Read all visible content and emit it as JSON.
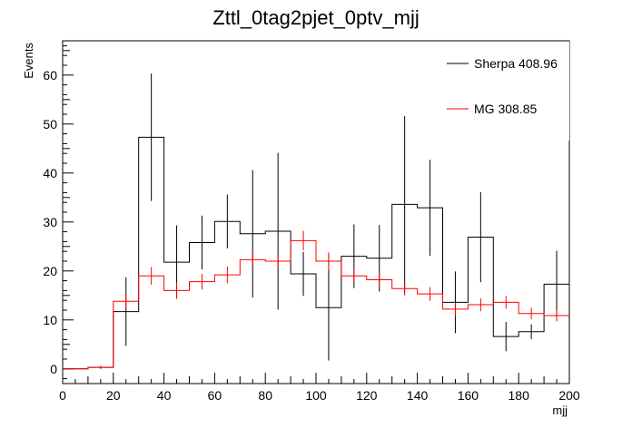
{
  "chart_data": {
    "type": "histogram",
    "title": "Zttl_0tag2pjet_0ptv_mjj",
    "xlabel": "mjj",
    "ylabel": "Events",
    "xlim": [
      0,
      200
    ],
    "ylim": [
      -3,
      67
    ],
    "xticks": [
      0,
      20,
      40,
      60,
      80,
      100,
      120,
      140,
      160,
      180,
      200
    ],
    "yticks": [
      0,
      10,
      20,
      30,
      40,
      50,
      60
    ],
    "bin_edges": [
      0,
      10,
      20,
      30,
      40,
      50,
      60,
      70,
      80,
      90,
      100,
      110,
      120,
      130,
      140,
      150,
      160,
      170,
      180,
      190,
      200
    ],
    "legend_position": "top-right",
    "series": [
      {
        "name": "Sherpa 408.96",
        "color": "#000000",
        "values": [
          0,
          0.3,
          11.7,
          47.3,
          21.8,
          25.8,
          30.1,
          27.6,
          28.1,
          19.4,
          12.5,
          23.0,
          22.6,
          33.6,
          32.9,
          13.6,
          26.9,
          6.6,
          7.6,
          17.3
        ],
        "errors": [
          0,
          0.3,
          7.0,
          13.0,
          7.5,
          5.5,
          5.5,
          13.0,
          16.0,
          4.5,
          10.8,
          6.5,
          6.8,
          18.0,
          9.8,
          6.3,
          9.2,
          3.0,
          1.5,
          6.8
        ]
      },
      {
        "name": "MG 308.85",
        "color": "#ff0000",
        "values": [
          0,
          0.3,
          13.8,
          19.0,
          16.0,
          17.8,
          19.2,
          22.3,
          22.0,
          26.2,
          22.0,
          19.0,
          18.2,
          16.4,
          15.3,
          12.2,
          13.1,
          13.6,
          11.3,
          10.9
        ],
        "errors": [
          0,
          0.2,
          1.5,
          1.8,
          1.7,
          1.6,
          1.7,
          1.3,
          1.4,
          2.0,
          1.8,
          1.4,
          1.4,
          1.4,
          1.4,
          1.4,
          1.3,
          1.3,
          1.2,
          1.2
        ]
      }
    ]
  }
}
